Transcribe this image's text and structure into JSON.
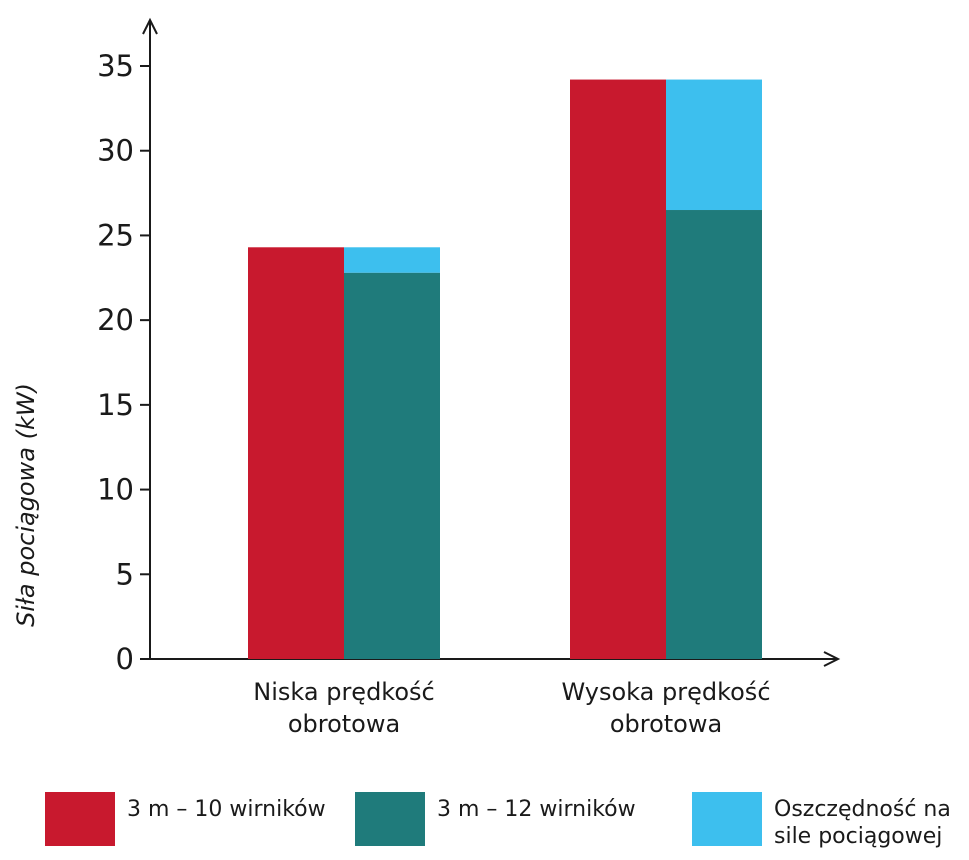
{
  "chart_data": {
    "type": "bar",
    "stacked_partial": true,
    "title": "",
    "xlabel": "",
    "ylabel": "Siła pociągowa (kW)",
    "ylim": [
      0,
      35
    ],
    "yticks": [
      "0",
      "5",
      "10",
      "15",
      "20",
      "25",
      "30",
      "35"
    ],
    "categories": [
      "Niska prędkość\nobrotowa",
      "Wysoka prędkość\nobrotowa"
    ],
    "series": [
      {
        "name": "3 m – 10 wirników",
        "values": [
          24.3,
          34.2
        ],
        "color": "#c8192e"
      },
      {
        "name": "3 m – 12 wirników",
        "values": [
          22.8,
          26.5
        ],
        "color": "#1f7b7b"
      },
      {
        "name": "Oszczędność na\nsile pociągowej",
        "values": [
          1.5,
          7.7
        ],
        "color": "#3dbfee",
        "stacked_on": "3 m – 12 wirników"
      }
    ],
    "grid": false,
    "legend_position": "bottom"
  }
}
